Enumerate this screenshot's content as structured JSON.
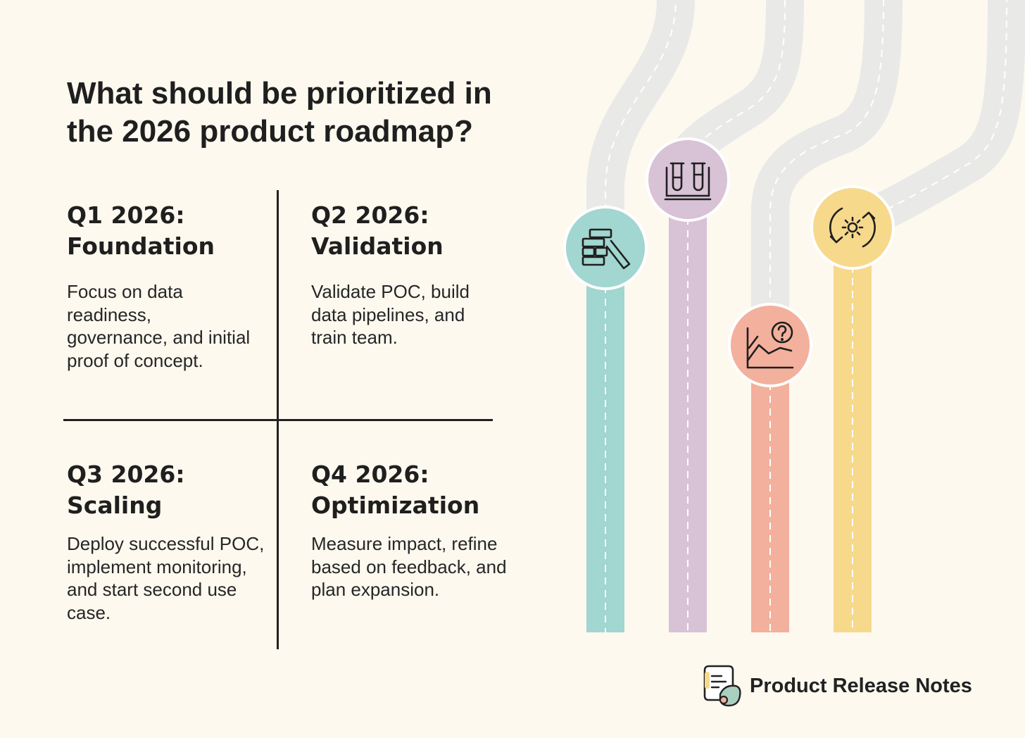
{
  "title": "What should be prioritized in the 2026 product roadmap?",
  "quarters": [
    {
      "title_line1": "Q1 2026:",
      "title_line2": "Foundation",
      "description": "Focus on data readiness, governance, and initial proof of concept.",
      "color": "#a2d6d0",
      "icon": "blocks-icon"
    },
    {
      "title_line1": "Q2 2026:",
      "title_line2": "Validation",
      "description": "Validate POC, build data pipelines, and train team.",
      "color": "#d8c2d6",
      "icon": "test-tubes-icon"
    },
    {
      "title_line1": "Q3 2026:",
      "title_line2": "Scaling",
      "description": "Deploy successful POC, implement monitoring, and start second use case.",
      "color": "#f3b09d",
      "icon": "chart-question-icon"
    },
    {
      "title_line1": "Q4 2026:",
      "title_line2": "Optimization",
      "description": "Measure impact, refine based on feedback, and plan expansion.",
      "color": "#f7d98c",
      "icon": "gear-refresh-icon"
    }
  ],
  "brand": {
    "name": "Product Release Notes"
  },
  "colors": {
    "background": "#fdf9ef",
    "road": "#e9e9e7",
    "text": "#1f1f1f"
  }
}
